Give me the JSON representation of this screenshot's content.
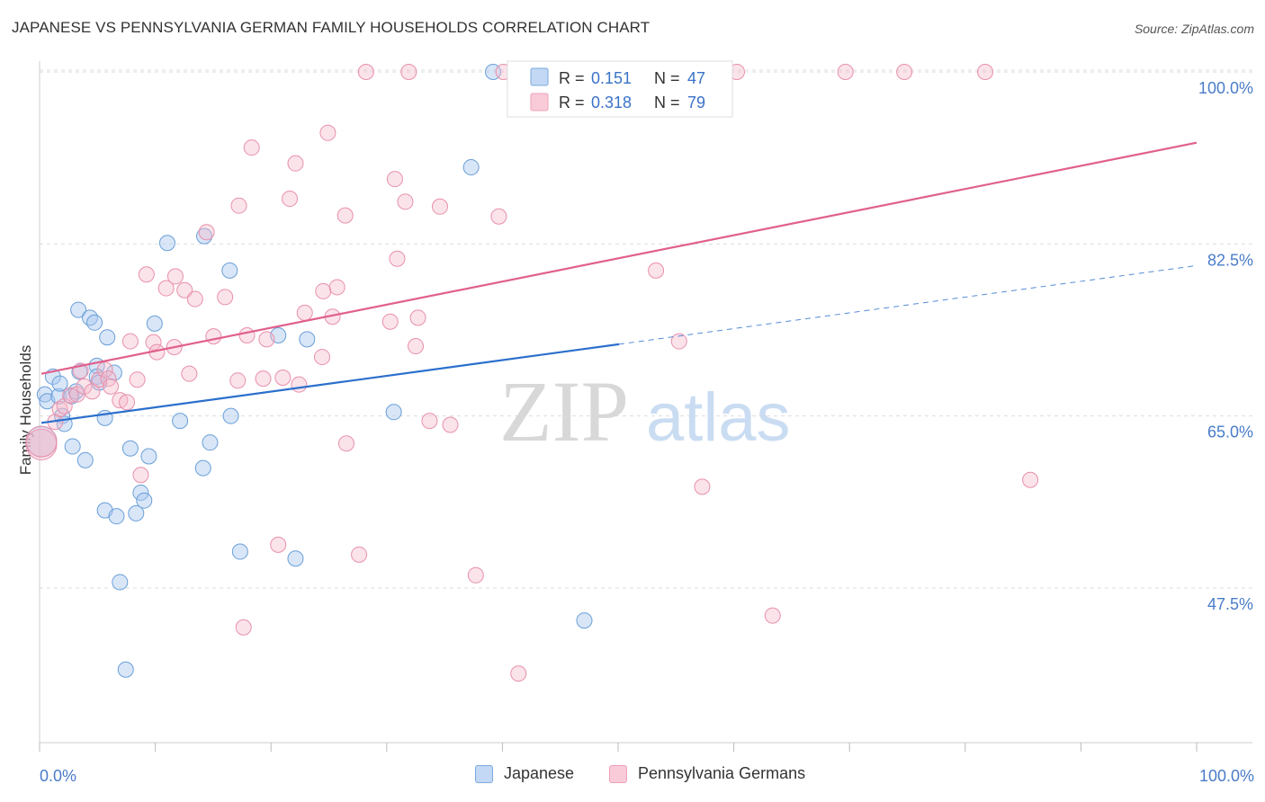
{
  "title": "JAPANESE VS PENNSYLVANIA GERMAN FAMILY HOUSEHOLDS CORRELATION CHART",
  "source": "Source: ZipAtlas.com",
  "watermark": {
    "zip": "ZIP",
    "atlas": "atlas"
  },
  "colors": {
    "blue_fill": "#a8c8f0",
    "blue_stroke": "#6a9fd8",
    "blue_line": "#2b6fcc",
    "pink_fill": "#f5b8cb",
    "pink_stroke": "#e890ac",
    "pink_line": "#e0608c",
    "axis_text": "#4a7cc9",
    "grid": "#dddddd"
  },
  "legend": {
    "rows": [
      {
        "r_label": "R =",
        "r_value": "0.151",
        "n_label": "N =",
        "n_value": "47"
      },
      {
        "r_label": "R =",
        "r_value": "0.318",
        "n_label": "N =",
        "n_value": "79"
      }
    ]
  },
  "chart_data": {
    "type": "scatter",
    "title": "JAPANESE VS PENNSYLVANIA GERMAN FAMILY HOUSEHOLDS CORRELATION CHART",
    "xlabel": "",
    "ylabel": "Family Households",
    "xlim": [
      0,
      100
    ],
    "ylim": [
      30,
      100
    ],
    "x_tick_labels": [
      "0.0%",
      "100.0%"
    ],
    "y_ticks": [
      47.5,
      65.0,
      82.5,
      100.0
    ],
    "y_tick_labels": [
      "47.5%",
      "65.0%",
      "82.5%",
      "100.0%"
    ],
    "grid": "horizontal dashed",
    "legend_position": "top-center",
    "series": [
      {
        "name": "Japanese",
        "color": "#a8c8f0",
        "trend": {
          "x0": 0,
          "y0": 64.3,
          "x1": 50,
          "y1": 72.3,
          "dashed_to": 100,
          "dashed_y": 80.3
        },
        "points": [
          [
            0.3,
            67.2
          ],
          [
            0.5,
            66.5
          ],
          [
            1.0,
            69.0
          ],
          [
            1.5,
            67.0
          ],
          [
            1.6,
            68.3
          ],
          [
            1.8,
            65.0
          ],
          [
            2.0,
            64.2
          ],
          [
            2.6,
            67.0
          ],
          [
            2.7,
            61.9
          ],
          [
            3.0,
            67.5
          ],
          [
            3.3,
            69.5
          ],
          [
            3.8,
            60.5
          ],
          [
            3.2,
            75.8
          ],
          [
            4.2,
            75.0
          ],
          [
            4.6,
            74.5
          ],
          [
            4.8,
            70.1
          ],
          [
            4.8,
            69.0
          ],
          [
            5.0,
            68.4
          ],
          [
            5.5,
            64.8
          ],
          [
            5.5,
            55.4
          ],
          [
            5.7,
            73.0
          ],
          [
            6.3,
            69.4
          ],
          [
            6.5,
            54.8
          ],
          [
            6.8,
            48.1
          ],
          [
            7.3,
            39.2
          ],
          [
            7.7,
            61.7
          ],
          [
            8.2,
            55.1
          ],
          [
            8.6,
            57.2
          ],
          [
            8.9,
            56.4
          ],
          [
            9.3,
            60.9
          ],
          [
            9.8,
            74.4
          ],
          [
            10.9,
            82.6
          ],
          [
            12.0,
            64.5
          ],
          [
            14.0,
            59.7
          ],
          [
            14.1,
            83.3
          ],
          [
            14.6,
            62.3
          ],
          [
            16.4,
            65.0
          ],
          [
            16.3,
            79.8
          ],
          [
            17.2,
            51.2
          ],
          [
            20.5,
            73.2
          ],
          [
            22.0,
            50.5
          ],
          [
            23.0,
            72.8
          ],
          [
            30.5,
            65.4
          ],
          [
            39.1,
            100.0
          ],
          [
            37.2,
            90.3
          ],
          [
            47.0,
            44.2
          ],
          [
            0.0,
            62.4
          ]
        ]
      },
      {
        "name": "Pennsylvania Germans",
        "color": "#f5b8cb",
        "trend": {
          "x0": 0,
          "y0": 69.3,
          "x1": 100,
          "y1": 92.8
        },
        "points": [
          [
            0.0,
            62.1
          ],
          [
            1.2,
            64.4
          ],
          [
            1.6,
            65.7
          ],
          [
            2.0,
            66.0
          ],
          [
            2.5,
            67.1
          ],
          [
            3.1,
            67.2
          ],
          [
            3.4,
            69.6
          ],
          [
            3.7,
            68.0
          ],
          [
            4.4,
            67.5
          ],
          [
            5.0,
            68.7
          ],
          [
            5.5,
            69.7
          ],
          [
            5.8,
            68.8
          ],
          [
            6.0,
            68.0
          ],
          [
            6.8,
            66.6
          ],
          [
            7.4,
            66.4
          ],
          [
            7.7,
            72.6
          ],
          [
            8.3,
            68.7
          ],
          [
            8.6,
            59.0
          ],
          [
            9.1,
            79.4
          ],
          [
            9.7,
            72.5
          ],
          [
            10.0,
            71.5
          ],
          [
            10.8,
            78.0
          ],
          [
            11.5,
            72.0
          ],
          [
            11.6,
            79.2
          ],
          [
            12.4,
            77.8
          ],
          [
            12.8,
            69.3
          ],
          [
            13.3,
            76.9
          ],
          [
            14.3,
            83.7
          ],
          [
            14.9,
            73.1
          ],
          [
            15.9,
            77.1
          ],
          [
            17.0,
            68.6
          ],
          [
            17.1,
            86.4
          ],
          [
            17.5,
            43.5
          ],
          [
            17.8,
            73.2
          ],
          [
            18.2,
            92.3
          ],
          [
            19.2,
            68.8
          ],
          [
            19.5,
            72.8
          ],
          [
            20.5,
            51.9
          ],
          [
            20.9,
            68.9
          ],
          [
            21.5,
            87.1
          ],
          [
            22.0,
            90.7
          ],
          [
            22.3,
            68.2
          ],
          [
            22.8,
            75.5
          ],
          [
            24.3,
            71.0
          ],
          [
            24.4,
            77.7
          ],
          [
            24.8,
            93.8
          ],
          [
            25.2,
            75.1
          ],
          [
            25.6,
            78.1
          ],
          [
            26.3,
            85.4
          ],
          [
            26.4,
            62.2
          ],
          [
            27.5,
            50.9
          ],
          [
            28.1,
            100.0
          ],
          [
            30.2,
            74.6
          ],
          [
            30.6,
            89.1
          ],
          [
            30.8,
            81.0
          ],
          [
            31.5,
            86.8
          ],
          [
            31.8,
            100.0
          ],
          [
            32.4,
            72.1
          ],
          [
            32.6,
            75.0
          ],
          [
            33.6,
            64.5
          ],
          [
            34.5,
            86.3
          ],
          [
            35.4,
            64.1
          ],
          [
            37.6,
            48.8
          ],
          [
            39.6,
            85.3
          ],
          [
            40.0,
            100.0
          ],
          [
            41.3,
            38.8
          ],
          [
            44.7,
            100.0
          ],
          [
            48.4,
            100.0
          ],
          [
            51.4,
            100.0
          ],
          [
            53.2,
            79.8
          ],
          [
            55.2,
            72.6
          ],
          [
            57.2,
            57.8
          ],
          [
            60.2,
            100.0
          ],
          [
            63.3,
            44.7
          ],
          [
            69.6,
            100.0
          ],
          [
            74.7,
            100.0
          ],
          [
            81.7,
            100.0
          ],
          [
            85.6,
            58.5
          ],
          [
            0.0,
            62.4
          ]
        ]
      }
    ]
  },
  "bottom_legend": [
    {
      "label": "Japanese"
    },
    {
      "label": "Pennsylvania Germans"
    }
  ]
}
